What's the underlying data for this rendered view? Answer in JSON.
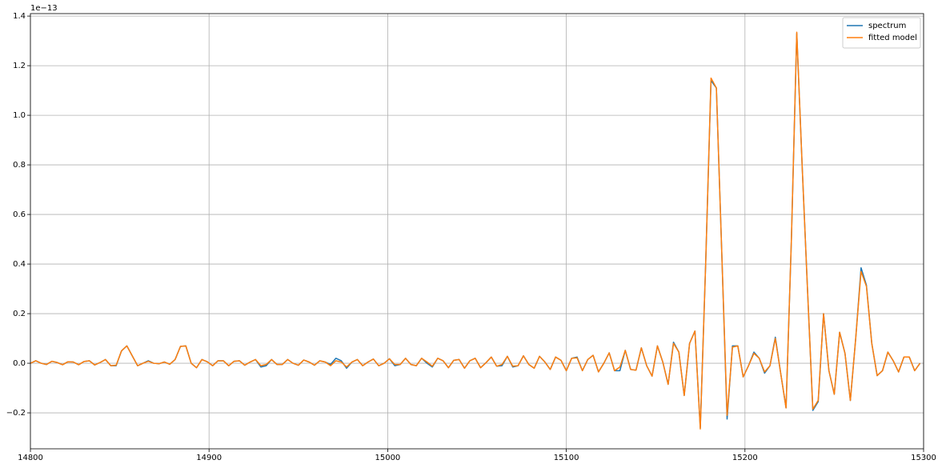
{
  "chart_data": {
    "type": "line",
    "y_offset_label": "1e−13",
    "legend": "upper right",
    "grid": true,
    "xlim": [
      14800,
      15300
    ],
    "ylim": [
      -0.345,
      1.41
    ],
    "xticks": [
      14800,
      14900,
      15000,
      15100,
      15200,
      15300
    ],
    "yticks": [
      {
        "value": -0.2,
        "label": "−0.2"
      },
      {
        "value": 0,
        "label": "0.0"
      },
      0.2,
      0.4,
      0.6,
      0.8,
      {
        "value": 1,
        "label": "1.0"
      },
      1.2,
      1.4
    ],
    "x": [
      14800,
      14803,
      14806,
      14809,
      14812,
      14815,
      14818,
      14821,
      14824,
      14827,
      14830,
      14833,
      14836,
      14839,
      14842,
      14845,
      14848,
      14851,
      14854,
      14857,
      14860,
      14863,
      14866,
      14869,
      14872,
      14875,
      14878,
      14881,
      14884,
      14887,
      14890,
      14893,
      14896,
      14899,
      14902,
      14905,
      14908,
      14911,
      14914,
      14917,
      14920,
      14923,
      14926,
      14929,
      14932,
      14935,
      14938,
      14941,
      14944,
      14947,
      14950,
      14953,
      14956,
      14959,
      14962,
      14965,
      14968,
      14971,
      14974,
      14977,
      14980,
      14983,
      14986,
      14989,
      14992,
      14995,
      14998,
      15001,
      15004,
      15007,
      15010,
      15013,
      15016,
      15019,
      15022,
      15025,
      15028,
      15031,
      15034,
      15037,
      15040,
      15043,
      15046,
      15049,
      15052,
      15055,
      15058,
      15061,
      15064,
      15067,
      15070,
      15073,
      15076,
      15079,
      15082,
      15085,
      15088,
      15091,
      15094,
      15097,
      15100,
      15103,
      15106,
      15109,
      15112,
      15115,
      15118,
      15121,
      15124,
      15127,
      15130,
      15133,
      15136,
      15139,
      15142,
      15145,
      15148,
      15151,
      15154,
      15157,
      15160,
      15163,
      15166,
      15169,
      15172,
      15175,
      15178,
      15181,
      15184,
      15187,
      15190,
      15193,
      15196,
      15199,
      15202,
      15205,
      15208,
      15211,
      15214,
      15217,
      15220,
      15223,
      15226,
      15229,
      15232,
      15235,
      15238,
      15241,
      15244,
      15247,
      15250,
      15253,
      15256,
      15259,
      15262,
      15265,
      15268,
      15271,
      15274,
      15277,
      15280,
      15283,
      15286,
      15289,
      15292,
      15295,
      15298
    ],
    "series": [
      {
        "name": "spectrum",
        "color": "#1f77b4",
        "values": [
          0.0,
          0.01,
          0.0,
          -0.005,
          0.008,
          0.003,
          -0.006,
          0.006,
          0.005,
          -0.006,
          0.007,
          0.01,
          -0.007,
          0.003,
          0.015,
          -0.01,
          -0.01,
          0.05,
          0.07,
          0.03,
          -0.01,
          0.0,
          0.01,
          0.0,
          -0.002,
          0.005,
          -0.004,
          0.015,
          0.068,
          0.07,
          0.0,
          -0.018,
          0.015,
          0.006,
          -0.01,
          0.01,
          0.01,
          -0.01,
          0.008,
          0.01,
          -0.008,
          0.005,
          0.015,
          -0.015,
          -0.01,
          0.015,
          -0.005,
          -0.005,
          0.015,
          0.0,
          -0.008,
          0.013,
          0.005,
          -0.008,
          0.01,
          0.005,
          -0.005,
          0.02,
          0.01,
          -0.02,
          0.005,
          0.015,
          -0.01,
          0.005,
          0.017,
          -0.01,
          0.0,
          0.018,
          -0.01,
          -0.005,
          0.02,
          -0.005,
          -0.01,
          0.02,
          0.0,
          -0.015,
          0.02,
          0.01,
          -0.018,
          0.012,
          0.015,
          -0.02,
          0.01,
          0.02,
          -0.018,
          0.002,
          0.025,
          -0.012,
          -0.01,
          0.028,
          -0.015,
          -0.01,
          0.03,
          -0.005,
          -0.02,
          0.028,
          0.005,
          -0.025,
          0.025,
          0.012,
          -0.03,
          0.02,
          0.025,
          -0.03,
          0.015,
          0.032,
          -0.035,
          0.0,
          0.042,
          -0.03,
          -0.03,
          0.052,
          -0.025,
          -0.028,
          0.062,
          -0.01,
          -0.052,
          0.07,
          0.005,
          -0.085,
          0.085,
          0.045,
          -0.13,
          0.08,
          0.13,
          -0.26,
          0.4,
          1.14,
          1.11,
          0.45,
          -0.225,
          0.07,
          0.07,
          -0.055,
          -0.01,
          0.045,
          0.02,
          -0.04,
          -0.01,
          0.105,
          -0.04,
          -0.18,
          0.5,
          1.33,
          0.8,
          0.3,
          -0.19,
          -0.155,
          0.2,
          -0.03,
          -0.125,
          0.125,
          0.04,
          -0.15,
          0.1,
          0.385,
          0.315,
          0.08,
          -0.05,
          -0.03,
          0.045,
          0.01,
          -0.035,
          0.025,
          0.025,
          -0.03,
          0.0
        ]
      },
      {
        "name": "fitted model",
        "color": "#ff7f0e",
        "values": [
          0.0,
          0.01,
          0.0,
          -0.005,
          0.008,
          0.003,
          -0.006,
          0.006,
          0.005,
          -0.006,
          0.007,
          0.01,
          -0.007,
          0.003,
          0.015,
          -0.01,
          -0.008,
          0.05,
          0.07,
          0.03,
          -0.01,
          0.0,
          0.008,
          0.0,
          -0.002,
          0.005,
          -0.004,
          0.015,
          0.068,
          0.07,
          0.0,
          -0.018,
          0.015,
          0.006,
          -0.01,
          0.01,
          0.01,
          -0.01,
          0.008,
          0.01,
          -0.008,
          0.005,
          0.015,
          -0.01,
          -0.005,
          0.015,
          -0.005,
          -0.005,
          0.015,
          0.0,
          -0.008,
          0.013,
          0.005,
          -0.008,
          0.01,
          0.005,
          -0.01,
          0.01,
          0.005,
          -0.015,
          0.005,
          0.015,
          -0.01,
          0.005,
          0.017,
          -0.01,
          0.0,
          0.018,
          -0.005,
          -0.005,
          0.02,
          -0.005,
          -0.01,
          0.02,
          0.005,
          -0.012,
          0.02,
          0.01,
          -0.018,
          0.012,
          0.015,
          -0.02,
          0.01,
          0.02,
          -0.018,
          0.002,
          0.025,
          -0.012,
          -0.005,
          0.028,
          -0.012,
          -0.01,
          0.03,
          -0.005,
          -0.02,
          0.028,
          0.005,
          -0.025,
          0.025,
          0.012,
          -0.03,
          0.02,
          0.022,
          -0.03,
          0.015,
          0.032,
          -0.035,
          0.0,
          0.042,
          -0.03,
          -0.015,
          0.052,
          -0.025,
          -0.028,
          0.062,
          -0.01,
          -0.052,
          0.07,
          0.005,
          -0.085,
          0.08,
          0.045,
          -0.13,
          0.08,
          0.13,
          -0.265,
          0.4,
          1.15,
          1.11,
          0.45,
          -0.21,
          0.065,
          0.07,
          -0.055,
          -0.01,
          0.04,
          0.02,
          -0.035,
          -0.01,
          0.1,
          -0.04,
          -0.18,
          0.5,
          1.335,
          0.8,
          0.3,
          -0.185,
          -0.15,
          0.2,
          -0.03,
          -0.125,
          0.125,
          0.04,
          -0.15,
          0.1,
          0.37,
          0.31,
          0.08,
          -0.05,
          -0.03,
          0.045,
          0.01,
          -0.035,
          0.025,
          0.025,
          -0.03,
          0.0
        ]
      }
    ]
  }
}
